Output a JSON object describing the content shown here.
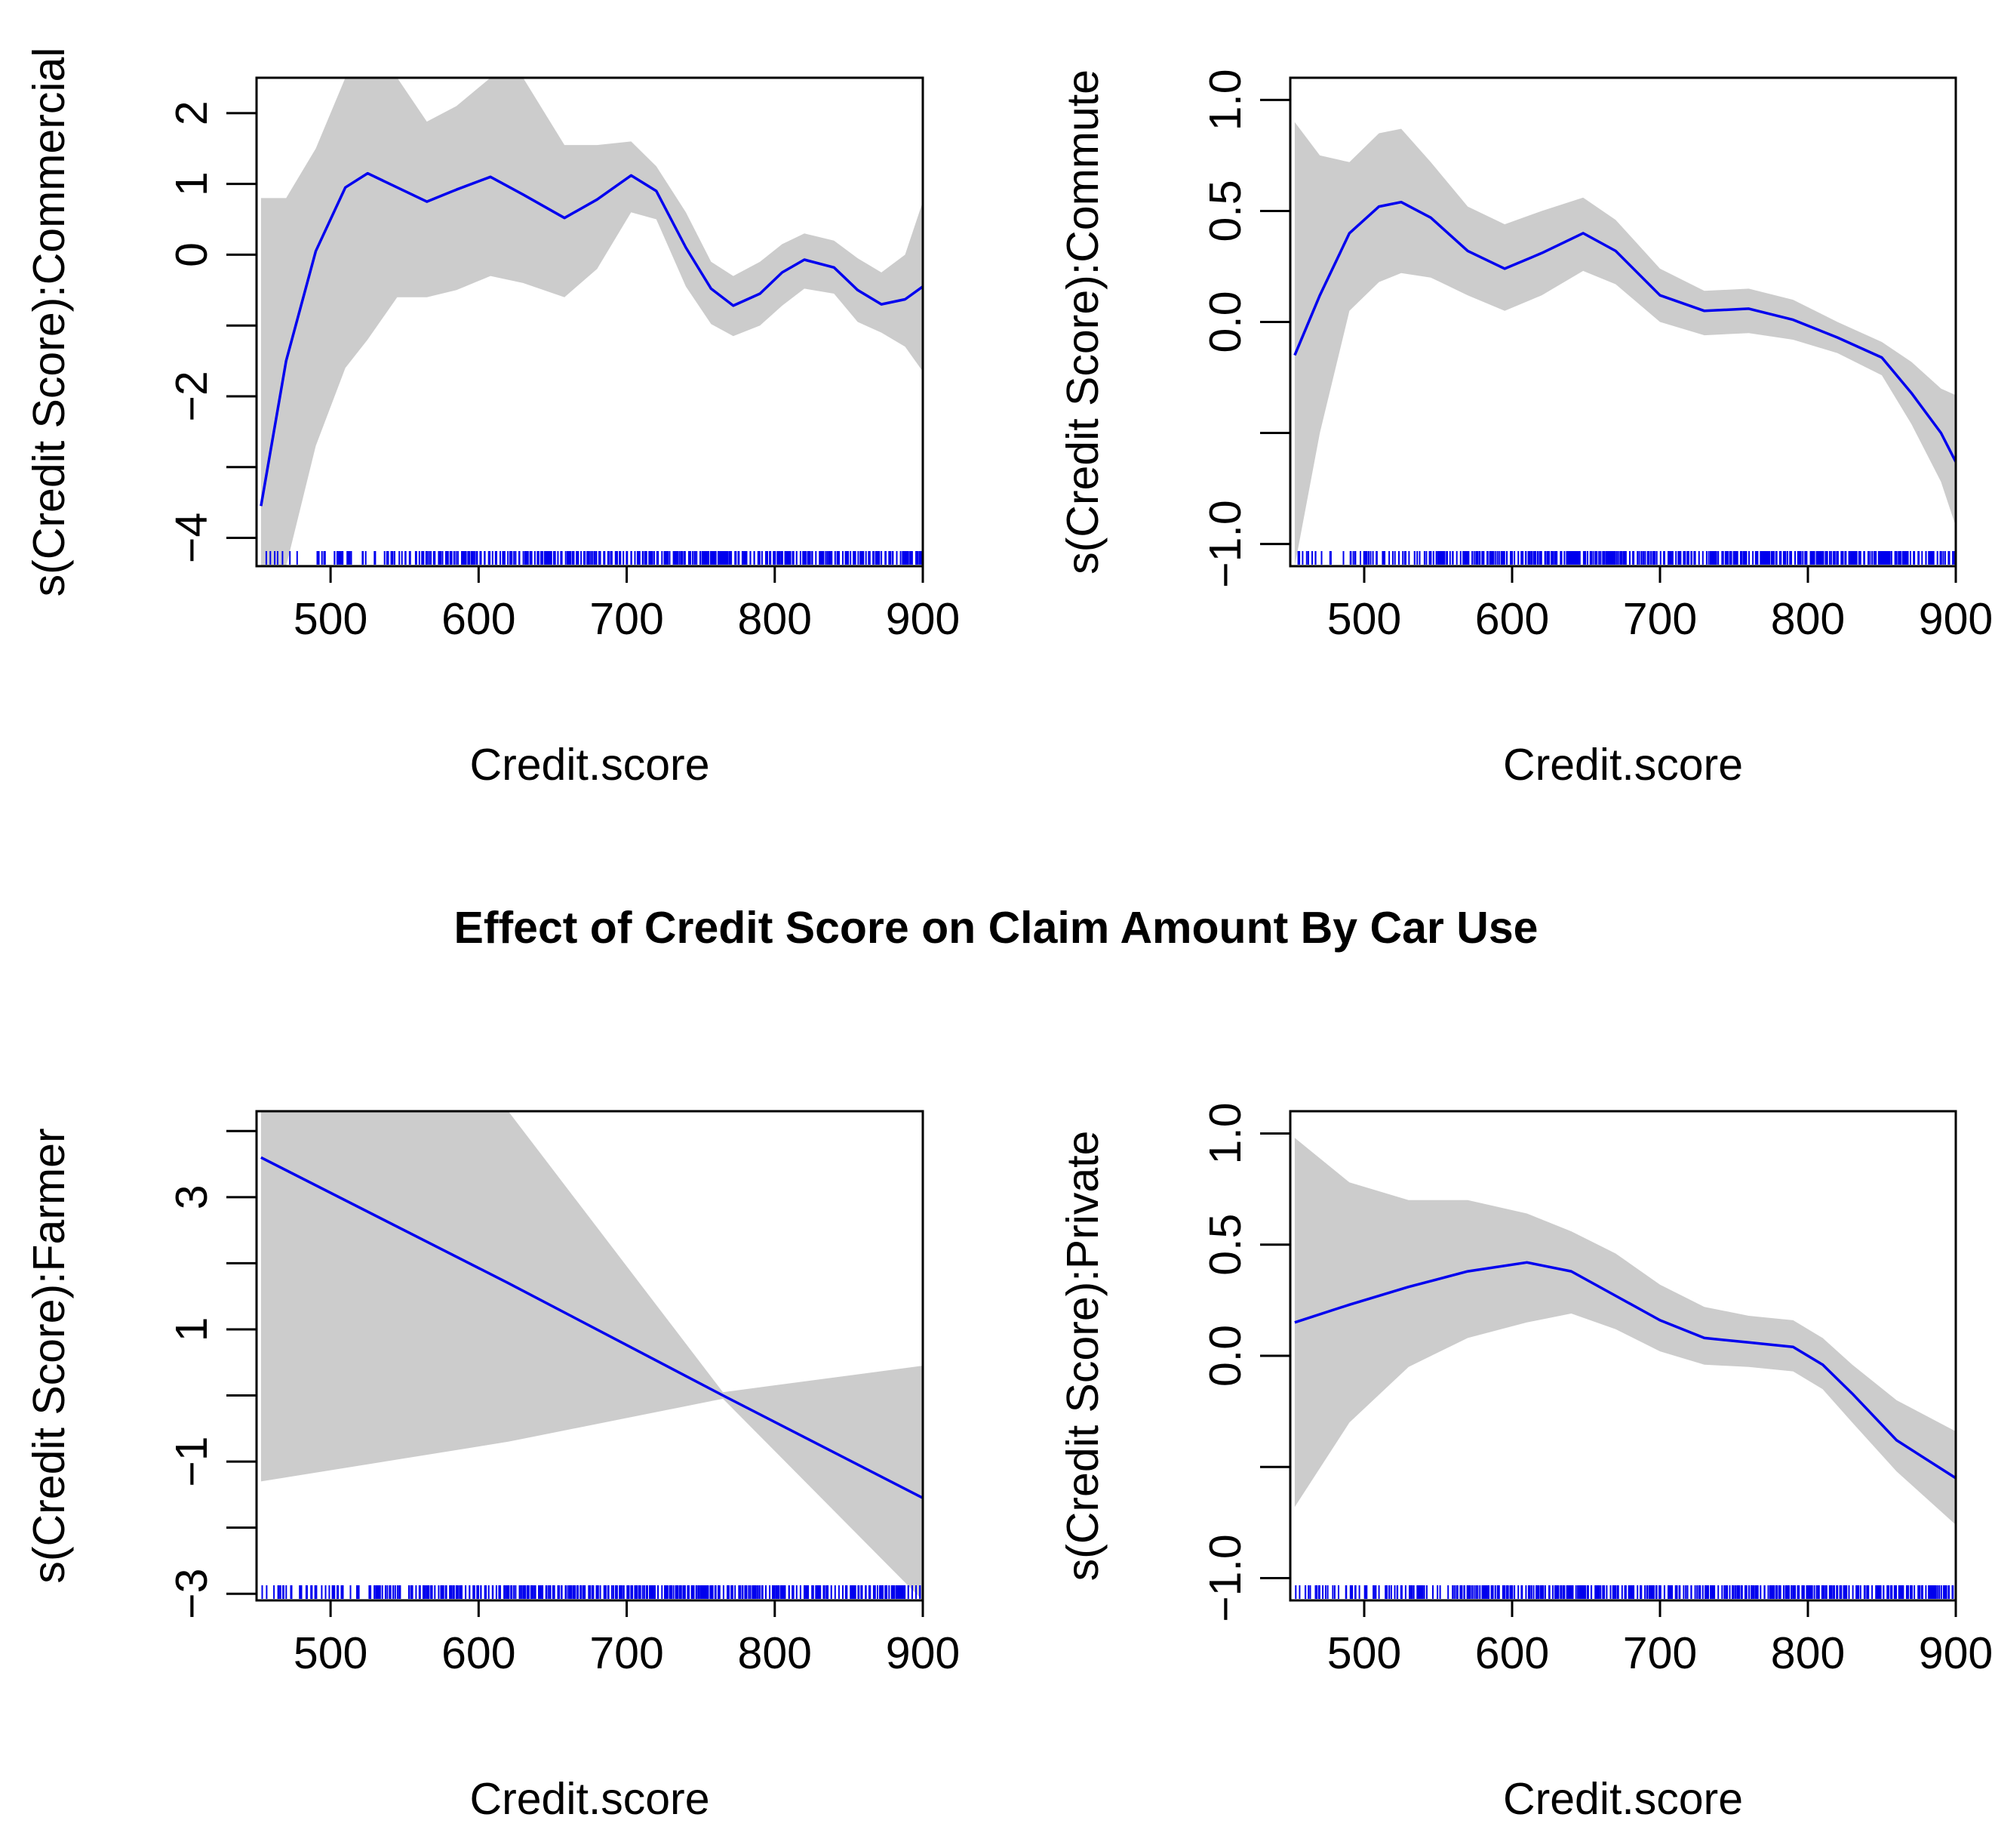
{
  "title": "Effect of Credit Score on Claim Amount By Car Use",
  "colors": {
    "line": "#0000ee",
    "band": "#cccccc",
    "rug": "#0000ee",
    "axis": "#000000"
  },
  "chart_data": [
    {
      "type": "line",
      "panel": "top-left",
      "xlabel": "Credit.score",
      "ylabel": "s(Credit Score):Commercial",
      "xlim": [
        450,
        900
      ],
      "ylim": [
        -4.4,
        2.5
      ],
      "xticks": [
        500,
        600,
        700,
        800,
        900
      ],
      "xtick_labels": [
        "500",
        "600",
        "700",
        "800",
        "900"
      ],
      "yticks": [
        -4,
        -3,
        -2,
        -1,
        0,
        1,
        2
      ],
      "ytick_labels": [
        "−4",
        "",
        "−2",
        "",
        "0",
        "1",
        "2"
      ],
      "x": [
        453,
        470,
        490,
        510,
        525,
        545,
        565,
        585,
        608,
        630,
        658,
        680,
        703,
        720,
        740,
        757,
        772,
        790,
        805,
        820,
        840,
        856,
        872,
        888,
        900
      ],
      "fit": [
        -3.55,
        -1.5,
        0.05,
        0.95,
        1.15,
        0.95,
        0.75,
        0.92,
        1.1,
        0.85,
        0.52,
        0.78,
        1.12,
        0.9,
        0.1,
        -0.48,
        -0.72,
        -0.55,
        -0.25,
        -0.07,
        -0.18,
        -0.5,
        -0.7,
        -0.63,
        -0.45
      ],
      "upper": [
        0.8,
        0.8,
        1.5,
        2.5,
        2.5,
        2.5,
        1.88,
        2.1,
        2.5,
        2.5,
        1.55,
        1.55,
        1.6,
        1.25,
        0.6,
        -0.1,
        -0.3,
        -0.1,
        0.15,
        0.3,
        0.2,
        -0.05,
        -0.25,
        0.0,
        0.75
      ],
      "lower": [
        -4.4,
        -4.4,
        -2.7,
        -1.6,
        -1.2,
        -0.6,
        -0.6,
        -0.5,
        -0.3,
        -0.4,
        -0.6,
        -0.2,
        0.6,
        0.5,
        -0.45,
        -0.98,
        -1.15,
        -1.0,
        -0.72,
        -0.48,
        -0.55,
        -0.95,
        -1.1,
        -1.3,
        -1.65
      ],
      "rug_range": [
        453,
        900
      ]
    },
    {
      "type": "line",
      "panel": "top-right",
      "xlabel": "Credit.score",
      "ylabel": "s(Credit Score):Commute",
      "xlim": [
        450,
        900
      ],
      "ylim": [
        -1.1,
        1.1
      ],
      "xticks": [
        500,
        600,
        700,
        800,
        900
      ],
      "xtick_labels": [
        "500",
        "600",
        "700",
        "800",
        "900"
      ],
      "yticks": [
        -1.0,
        -0.5,
        0.0,
        0.5,
        1.0
      ],
      "ytick_labels": [
        "−1.0",
        "",
        "0.0",
        "0.5",
        "1.0"
      ],
      "x": [
        453,
        470,
        490,
        510,
        525,
        545,
        570,
        595,
        620,
        648,
        670,
        700,
        730,
        760,
        790,
        820,
        850,
        870,
        890,
        900
      ],
      "fit": [
        -0.15,
        0.12,
        0.4,
        0.52,
        0.54,
        0.47,
        0.32,
        0.24,
        0.31,
        0.4,
        0.32,
        0.12,
        0.05,
        0.06,
        0.01,
        -0.07,
        -0.16,
        -0.32,
        -0.5,
        -0.63
      ],
      "upper": [
        0.9,
        0.75,
        0.72,
        0.85,
        0.87,
        0.72,
        0.52,
        0.44,
        0.5,
        0.56,
        0.46,
        0.24,
        0.14,
        0.15,
        0.1,
        0.0,
        -0.09,
        -0.18,
        -0.3,
        -0.33
      ],
      "lower": [
        -1.1,
        -0.5,
        0.05,
        0.18,
        0.22,
        0.2,
        0.12,
        0.05,
        0.12,
        0.23,
        0.17,
        0.0,
        -0.06,
        -0.05,
        -0.08,
        -0.14,
        -0.24,
        -0.46,
        -0.72,
        -0.92
      ],
      "rug_range": [
        453,
        900
      ]
    },
    {
      "type": "line",
      "panel": "bottom-left",
      "xlabel": "Credit.score",
      "ylabel": "s(Credit Score):Farmer",
      "xlim": [
        450,
        900
      ],
      "ylim": [
        -3.1,
        4.3
      ],
      "xticks": [
        500,
        600,
        700,
        800,
        900
      ],
      "xtick_labels": [
        "500",
        "600",
        "700",
        "800",
        "900"
      ],
      "yticks": [
        -3,
        -2,
        -1,
        0,
        1,
        2,
        3,
        4
      ],
      "ytick_labels": [
        "−3",
        "",
        "−1",
        "",
        "1",
        "",
        "3",
        ""
      ],
      "x": [
        453,
        620,
        765,
        900
      ],
      "fit": [
        3.6,
        1.7,
        0.0,
        -1.55
      ],
      "upper": [
        4.3,
        4.3,
        0.05,
        0.45
      ],
      "lower": [
        -1.3,
        -0.7,
        -0.05,
        -3.1
      ],
      "rug_range": [
        453,
        900
      ]
    },
    {
      "type": "line",
      "panel": "bottom-right",
      "xlabel": "Credit.score",
      "ylabel": "s(Credit Score):Private",
      "xlim": [
        450,
        900
      ],
      "ylim": [
        -1.1,
        1.1
      ],
      "xticks": [
        500,
        600,
        700,
        800,
        900
      ],
      "xtick_labels": [
        "500",
        "600",
        "700",
        "800",
        "900"
      ],
      "yticks": [
        -1.0,
        -0.5,
        0.0,
        0.5,
        1.0
      ],
      "ytick_labels": [
        "−1.0",
        "",
        "0.0",
        "0.5",
        "1.0"
      ],
      "x": [
        453,
        490,
        530,
        570,
        610,
        640,
        670,
        700,
        730,
        760,
        790,
        810,
        830,
        860,
        900
      ],
      "fit": [
        0.15,
        0.23,
        0.31,
        0.38,
        0.42,
        0.38,
        0.27,
        0.16,
        0.08,
        0.06,
        0.04,
        -0.04,
        -0.17,
        -0.38,
        -0.55
      ],
      "upper": [
        0.98,
        0.78,
        0.7,
        0.7,
        0.64,
        0.56,
        0.46,
        0.32,
        0.22,
        0.18,
        0.16,
        0.08,
        -0.04,
        -0.2,
        -0.34
      ],
      "lower": [
        -0.68,
        -0.3,
        -0.05,
        0.08,
        0.15,
        0.19,
        0.12,
        0.02,
        -0.04,
        -0.05,
        -0.07,
        -0.15,
        -0.3,
        -0.52,
        -0.76
      ],
      "rug_range": [
        453,
        900
      ]
    }
  ]
}
